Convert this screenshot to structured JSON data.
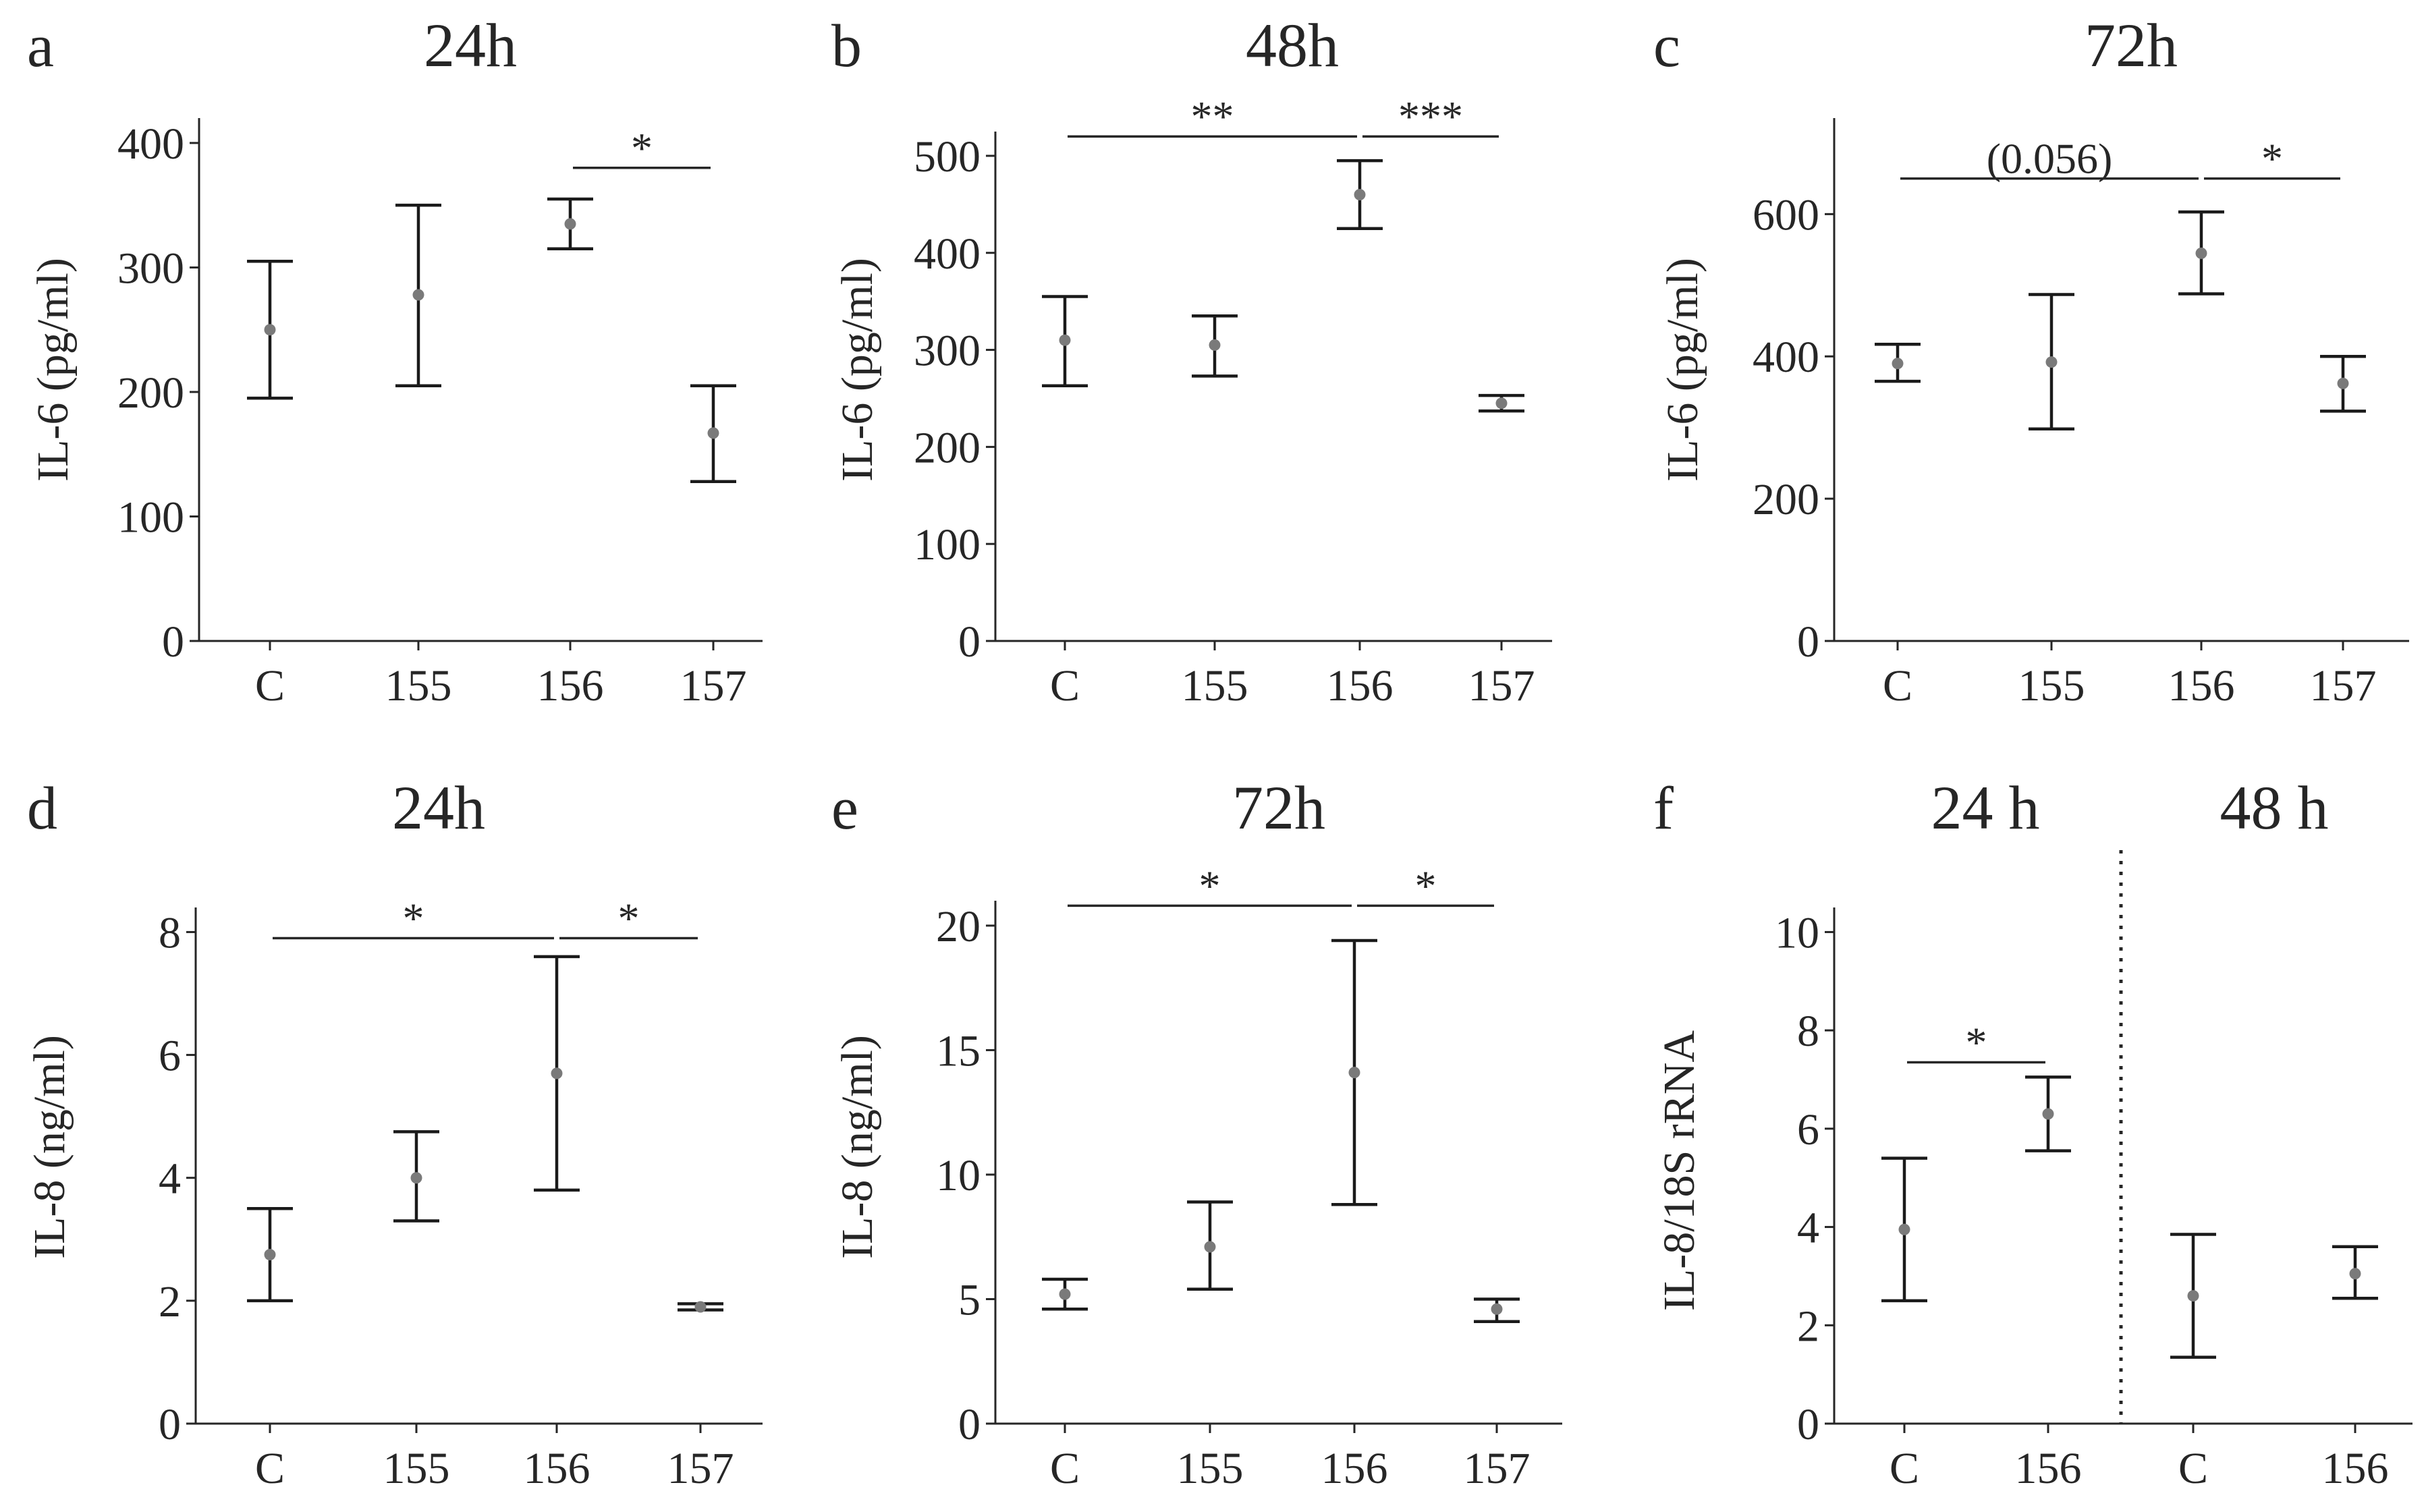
{
  "chart_data": [
    {
      "panel": "a",
      "type": "errorbar",
      "title": "24h",
      "ylabel": "IL-6 (pg/ml)",
      "ylim": [
        0,
        420
      ],
      "yticks": [
        0,
        100,
        200,
        300,
        400
      ],
      "categories": [
        "C",
        "155",
        "156",
        "157"
      ],
      "points": [
        {
          "mean": 250,
          "low": 195,
          "high": 305
        },
        {
          "mean": 278,
          "low": 205,
          "high": 350
        },
        {
          "mean": 335,
          "low": 315,
          "high": 355
        },
        {
          "mean": 167,
          "low": 128,
          "high": 205
        }
      ],
      "significance": [
        {
          "from": 2,
          "to": 3,
          "label": "*",
          "y": 380
        }
      ]
    },
    {
      "panel": "b",
      "type": "errorbar",
      "title": "48h",
      "ylabel": "IL-6 (pg/ml)",
      "ylim": [
        0,
        525
      ],
      "yticks": [
        0,
        100,
        200,
        300,
        400,
        500
      ],
      "categories": [
        "C",
        "155",
        "156",
        "157"
      ],
      "points": [
        {
          "mean": 310,
          "low": 263,
          "high": 355
        },
        {
          "mean": 305,
          "low": 273,
          "high": 335
        },
        {
          "mean": 460,
          "low": 425,
          "high": 495
        },
        {
          "mean": 245,
          "low": 237,
          "high": 253
        }
      ],
      "significance": [
        {
          "from": 0,
          "to": 2,
          "label": "**",
          "y": 520
        },
        {
          "from": 2,
          "to": 3,
          "label": "***",
          "y": 520
        }
      ]
    },
    {
      "panel": "c",
      "type": "errorbar",
      "title": "72h",
      "ylabel": "IL-6 (pg/ml)",
      "ylim": [
        0,
        735
      ],
      "yticks": [
        0,
        200,
        400,
        600
      ],
      "categories": [
        "C",
        "155",
        "156",
        "157"
      ],
      "points": [
        {
          "mean": 390,
          "low": 365,
          "high": 417
        },
        {
          "mean": 392,
          "low": 298,
          "high": 487
        },
        {
          "mean": 545,
          "low": 488,
          "high": 603
        },
        {
          "mean": 362,
          "low": 323,
          "high": 400
        }
      ],
      "significance": [
        {
          "from": 0,
          "to": 2,
          "label": "(0.056)",
          "y": 650
        },
        {
          "from": 2,
          "to": 3,
          "label": "*",
          "y": 650
        }
      ]
    },
    {
      "panel": "d",
      "type": "errorbar",
      "title": "24h",
      "ylabel": "IL-8 (ng/ml)",
      "ylim": [
        0,
        8.4
      ],
      "yticks": [
        0,
        2,
        4,
        6,
        8
      ],
      "categories": [
        "C",
        "155",
        "156",
        "157"
      ],
      "points": [
        {
          "mean": 2.75,
          "low": 2.0,
          "high": 3.5
        },
        {
          "mean": 4.0,
          "low": 3.3,
          "high": 4.75
        },
        {
          "mean": 5.7,
          "low": 3.8,
          "high": 7.6
        },
        {
          "mean": 1.9,
          "low": 1.85,
          "high": 1.95
        }
      ],
      "significance": [
        {
          "from": 0,
          "to": 2,
          "label": "*",
          "y": 7.9
        },
        {
          "from": 2,
          "to": 3,
          "label": "*",
          "y": 7.9
        }
      ]
    },
    {
      "panel": "e",
      "type": "errorbar",
      "title": "72h",
      "ylabel": "IL-8 (ng/ml)",
      "ylim": [
        0,
        21
      ],
      "yticks": [
        0,
        5,
        10,
        15,
        20
      ],
      "categories": [
        "C",
        "155",
        "156",
        "157"
      ],
      "points": [
        {
          "mean": 5.2,
          "low": 4.6,
          "high": 5.8
        },
        {
          "mean": 7.1,
          "low": 5.4,
          "high": 8.9
        },
        {
          "mean": 14.1,
          "low": 8.8,
          "high": 19.4
        },
        {
          "mean": 4.6,
          "low": 4.1,
          "high": 5.0
        }
      ],
      "significance": [
        {
          "from": 0,
          "to": 2,
          "label": "*",
          "y": 20.8
        },
        {
          "from": 2,
          "to": 3,
          "label": "*",
          "y": 20.8
        }
      ]
    },
    {
      "panel": "f",
      "type": "errorbar",
      "titles": [
        "24 h",
        "48 h"
      ],
      "ylabel": "IL-8/18S rRNA",
      "ylim": [
        0,
        10.5
      ],
      "yticks": [
        0,
        2,
        4,
        6,
        8,
        10
      ],
      "categories": [
        "C",
        "156",
        "C",
        "156"
      ],
      "points": [
        {
          "mean": 3.95,
          "low": 2.5,
          "high": 5.4
        },
        {
          "mean": 6.3,
          "low": 5.55,
          "high": 7.05
        },
        {
          "mean": 2.6,
          "low": 1.35,
          "high": 3.85
        },
        {
          "mean": 3.05,
          "low": 2.55,
          "high": 3.6
        }
      ],
      "significance": [
        {
          "from": 0,
          "to": 1,
          "label": "*",
          "y": 7.35
        }
      ]
    }
  ]
}
